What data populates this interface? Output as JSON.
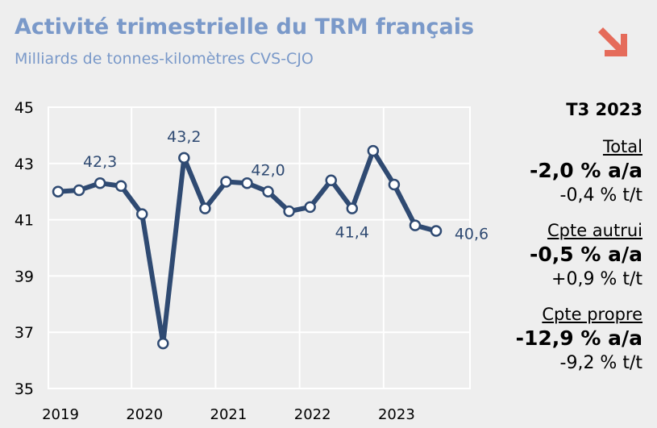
{
  "header": {
    "title": "Activité trimestrielle du TRM français",
    "subtitle": "Milliards de tonnes-kilomètres CVS-CJO"
  },
  "trend_icon": "down-right-arrow-icon",
  "colors": {
    "title": "#7a99c9",
    "line": "#2f4a72",
    "arrow": "#e56b5a",
    "grid": "#ffffff",
    "background": "#eeeeee"
  },
  "chart_data": {
    "type": "line",
    "title": "Activité trimestrielle du TRM français",
    "subtitle": "Milliards de tonnes-kilomètres CVS-CJO",
    "ylim": [
      35,
      45
    ],
    "yticks": [
      35,
      37,
      39,
      41,
      43,
      45
    ],
    "x_tick_labels": [
      "2019",
      "2020",
      "2021",
      "2022",
      "2023"
    ],
    "grid": true,
    "series": [
      {
        "values": [
          42.0,
          42.05,
          42.3,
          42.2,
          41.2,
          36.6,
          43.2,
          41.4,
          42.35,
          42.3,
          42.0,
          41.3,
          41.45,
          42.4,
          41.4,
          43.45,
          42.25,
          40.8,
          40.6
        ]
      }
    ],
    "data_labels": [
      {
        "index": 2,
        "text": "42,3"
      },
      {
        "index": 6,
        "text": "43,2"
      },
      {
        "index": 10,
        "text": "42,0"
      },
      {
        "index": 14,
        "text": "41,4"
      },
      {
        "index": 18,
        "text": "40,6"
      }
    ]
  },
  "panel": {
    "period": "T3 2023",
    "blocks": [
      {
        "label": "Total",
        "yoy": "-2,0 % a/a",
        "qoq": "-0,4 % t/t"
      },
      {
        "label": "Cpte autrui",
        "yoy": "-0,5 % a/a",
        "qoq": "+0,9 % t/t"
      },
      {
        "label": "Cpte propre",
        "yoy": "-12,9 % a/a",
        "qoq": "-9,2 % t/t"
      }
    ]
  }
}
